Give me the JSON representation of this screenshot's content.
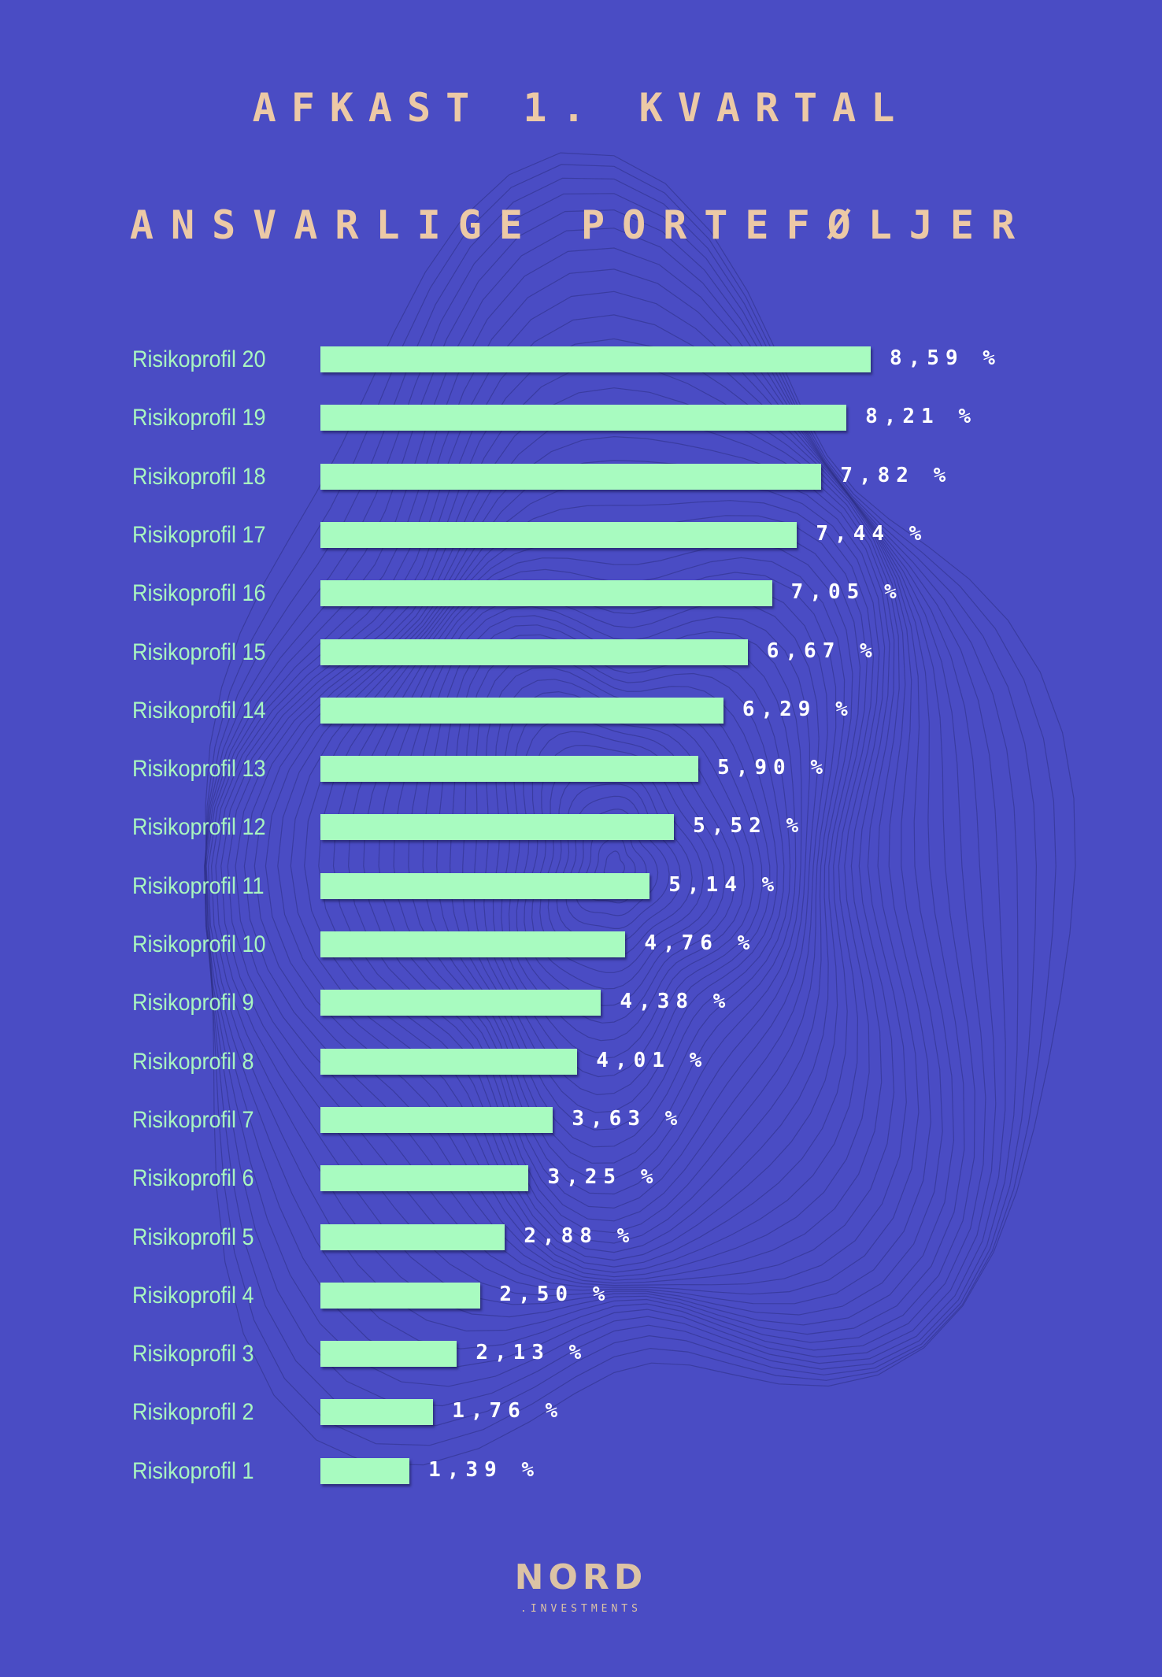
{
  "header": {
    "title": "AFKAST 1. KVARTAL",
    "subtitle": "ANSVARLIGE PORTEFØLJER"
  },
  "logo": {
    "name": "NORD",
    "sub": ".INVESTMENTS"
  },
  "colors": {
    "background": "#4a4cc4",
    "bar": "#a8fbc0",
    "category_label": "#a8f5c0",
    "value_label": "#ffffff",
    "title": "#ecc9a6"
  },
  "chart_data": {
    "type": "bar",
    "orientation": "horizontal",
    "title": "AFKAST 1. KVARTAL",
    "subtitle": "ANSVARLIGE PORTEFØLJER",
    "unit": "%",
    "xlim": [
      0,
      8.59
    ],
    "grid": false,
    "categories": [
      "Risikoprofil 20",
      "Risikoprofil 19",
      "Risikoprofil 18",
      "Risikoprofil 17",
      "Risikoprofil 16",
      "Risikoprofil 15",
      "Risikoprofil 14",
      "Risikoprofil 13",
      "Risikoprofil 12",
      "Risikoprofil 11",
      "Risikoprofil 10",
      "Risikoprofil 9",
      "Risikoprofil 8",
      "Risikoprofil 7",
      "Risikoprofil 6",
      "Risikoprofil 5",
      "Risikoprofil 4",
      "Risikoprofil 3",
      "Risikoprofil 2",
      "Risikoprofil 1"
    ],
    "values": [
      8.59,
      8.21,
      7.82,
      7.44,
      7.05,
      6.67,
      6.29,
      5.9,
      5.52,
      5.14,
      4.76,
      4.38,
      4.01,
      3.63,
      3.25,
      2.88,
      2.5,
      2.13,
      1.76,
      1.39
    ],
    "value_labels": [
      "8,59 %",
      "8,21 %",
      "7,82 %",
      "7,44 %",
      "7,05 %",
      "6,67 %",
      "6,29 %",
      "5,90 %",
      "5,52 %",
      "5,14 %",
      "4,76 %",
      "4,38 %",
      "4,01 %",
      "3,63 %",
      "3,25 %",
      "2,88 %",
      "2,50 %",
      "2,13 %",
      "1,76 %",
      "1,39 %"
    ]
  }
}
